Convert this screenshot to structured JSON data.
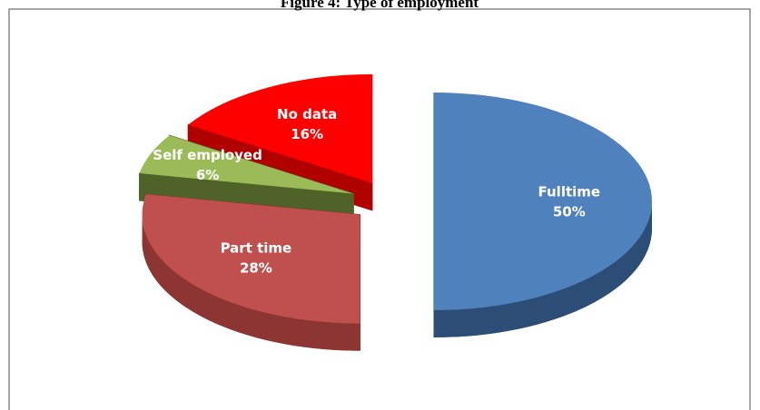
{
  "chart_data": {
    "type": "pie",
    "title": "Figure 4: Type of employment",
    "categories": [
      "Fulltime",
      "Part time",
      "Self employed",
      "No data"
    ],
    "values": [
      50,
      28,
      6,
      16
    ],
    "value_labels": [
      "50%",
      "28%",
      "6%",
      "16%"
    ],
    "colors": [
      "#4f81bd",
      "#c0504d",
      "#9bbb59",
      "#ff0000"
    ],
    "side_colors": [
      "#2c4d75",
      "#8c3533",
      "#4f6228",
      "#b00000"
    ]
  }
}
